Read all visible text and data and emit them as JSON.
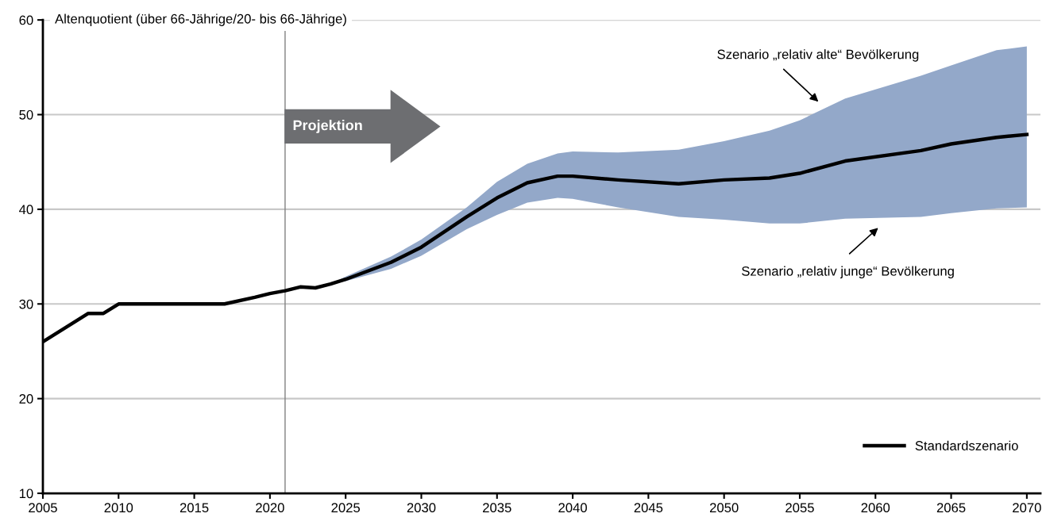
{
  "chart_data": {
    "type": "line",
    "ylabel": "Altenquotient (über 66-Jährige/20- bis 66-Jährige)",
    "x": [
      2005,
      2008,
      2009,
      2010,
      2017,
      2019,
      2020,
      2021,
      2022,
      2023,
      2024,
      2025,
      2028,
      2030,
      2033,
      2035,
      2037,
      2039,
      2040,
      2043,
      2047,
      2050,
      2053,
      2055,
      2058,
      2063,
      2065,
      2068,
      2070
    ],
    "series": [
      {
        "name": "Standardszenario",
        "color": "#000000",
        "lower": [
          null,
          null,
          null,
          null,
          null,
          null,
          null,
          null,
          null,
          null,
          32.1,
          32.4,
          33.7,
          35.1,
          37.9,
          39.4,
          40.7,
          41.2,
          41.1,
          40.2,
          39.2,
          38.9,
          38.5,
          38.5,
          39.0,
          39.2,
          39.6,
          40.1,
          40.2
        ],
        "upper": [
          null,
          null,
          null,
          null,
          null,
          null,
          null,
          null,
          null,
          null,
          32.1,
          32.9,
          35.0,
          36.8,
          40.2,
          42.9,
          44.8,
          45.9,
          46.1,
          46.0,
          46.3,
          47.2,
          48.3,
          49.4,
          51.7,
          54.1,
          55.2,
          56.8,
          57.2
        ],
        "values": [
          26,
          29,
          29,
          30,
          30,
          30.7,
          31.1,
          31.4,
          31.8,
          31.7,
          32.1,
          32.6,
          34.4,
          36.0,
          39.2,
          41.2,
          42.8,
          43.5,
          43.5,
          43.1,
          42.7,
          43.1,
          43.3,
          43.8,
          45.1,
          46.2,
          46.9,
          47.6,
          47.9
        ]
      }
    ],
    "xlim": [
      2005,
      2070.9
    ],
    "ylim": [
      10,
      60
    ],
    "xticks": [
      2005,
      2010,
      2015,
      2020,
      2025,
      2030,
      2035,
      2040,
      2045,
      2050,
      2055,
      2060,
      2065,
      2070
    ],
    "yticks": [
      10,
      20,
      30,
      40,
      50,
      60
    ],
    "grid": "y",
    "legend": "bottom right",
    "line_style": "solid",
    "marker": "none",
    "ref_lines": [
      {
        "axis": "x",
        "value": 2021,
        "color": "#808080"
      }
    ],
    "annotations": [
      "Projektion",
      "Szenario „relativ alte“ Bevölkerung",
      "Szenario „relativ junge“ Bevölkerung"
    ]
  }
}
